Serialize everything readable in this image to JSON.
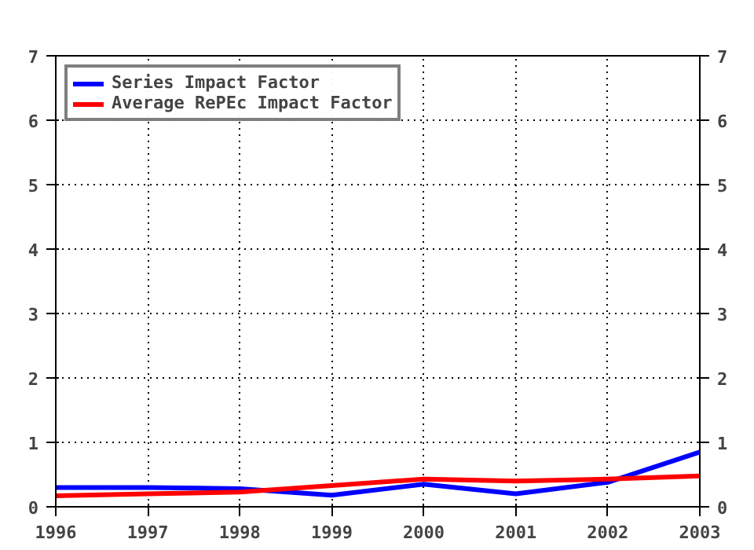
{
  "chart_data": {
    "type": "line",
    "x": [
      1996,
      1997,
      1998,
      1999,
      2000,
      2001,
      2002,
      2003
    ],
    "series": [
      {
        "name": "Series Impact Factor",
        "color": "#0000ff",
        "values": [
          0.3,
          0.3,
          0.28,
          0.18,
          0.35,
          0.2,
          0.38,
          0.85
        ]
      },
      {
        "name": "Average RePEc Impact Factor",
        "color": "#ff0000",
        "values": [
          0.17,
          0.2,
          0.23,
          0.33,
          0.43,
          0.4,
          0.43,
          0.48
        ]
      }
    ],
    "xlim": [
      1996,
      2003
    ],
    "xticks": [
      1996,
      1997,
      1998,
      1999,
      2000,
      2001,
      2002,
      2003
    ],
    "ylim": [
      0,
      7
    ],
    "yticks": [
      0,
      1,
      2,
      3,
      4,
      5,
      6,
      7
    ],
    "y2lim": [
      0,
      7
    ],
    "y2ticks": [
      0,
      1,
      2,
      3,
      4,
      5,
      6,
      7
    ],
    "grid": true,
    "legend": "top left",
    "marker": "none",
    "line_style": "solid"
  }
}
